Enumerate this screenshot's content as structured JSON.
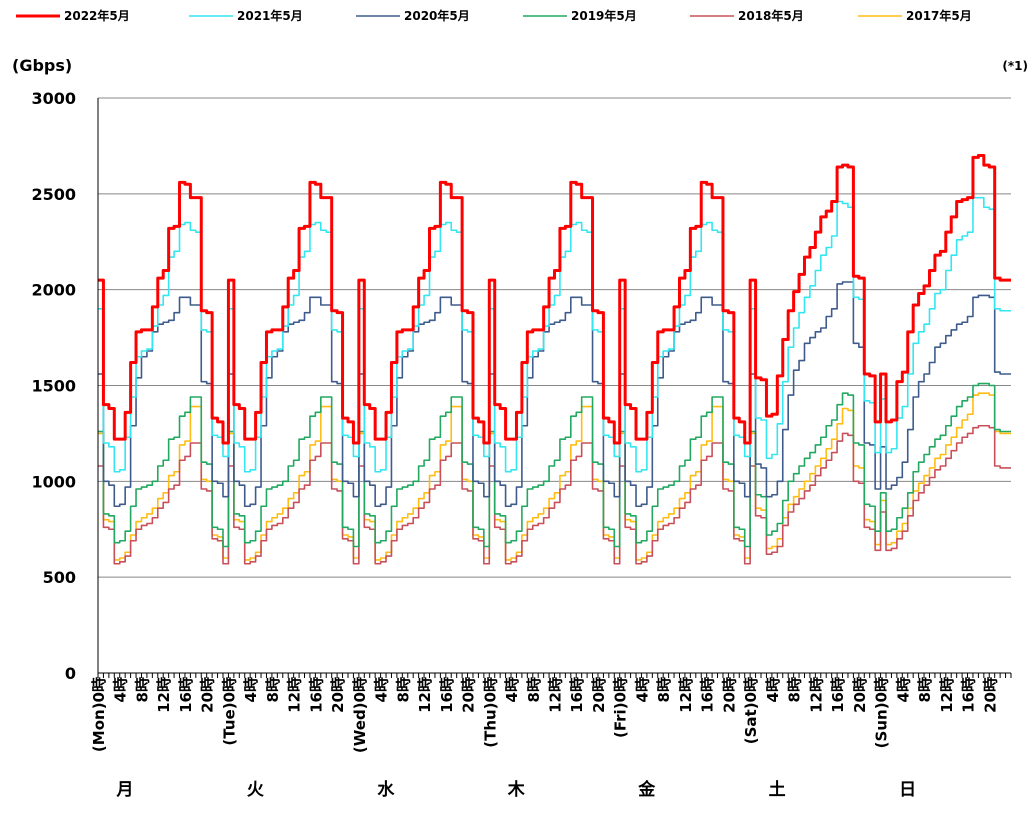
{
  "chart_data": {
    "type": "line",
    "title": "",
    "ylabel": "(Gbps)",
    "note": "(*1)",
    "ylim": [
      0,
      3000
    ],
    "yticks": [
      0,
      500,
      1000,
      1500,
      2000,
      2500,
      3000
    ],
    "grid": true,
    "legend_position": "top",
    "hour_labels": [
      "0時",
      "4時",
      "8時",
      "12時",
      "16時",
      "20時"
    ],
    "days": [
      {
        "en": "(Mon)",
        "ja": "月"
      },
      {
        "en": "(Tue)",
        "ja": "火"
      },
      {
        "en": "(Wed)",
        "ja": "水"
      },
      {
        "en": "(Thu)",
        "ja": "木"
      },
      {
        "en": "(Fri)",
        "ja": "金"
      },
      {
        "en": "(Sat)",
        "ja": "土"
      },
      {
        "en": "(Sun)",
        "ja": "日"
      }
    ],
    "hours_key": [
      0,
      1,
      2,
      3,
      4,
      5,
      6,
      7,
      8,
      9,
      10,
      11,
      12,
      13,
      14,
      15,
      16,
      17,
      18,
      19,
      20,
      21,
      22,
      23
    ],
    "series": [
      {
        "name": "2022年5月",
        "color": "#ff0000",
        "width": 3,
        "weekday": [
          2050,
          1400,
          1380,
          1220,
          1220,
          1360,
          1620,
          1780,
          1790,
          1790,
          1910,
          2060,
          2100,
          2320,
          2330,
          2560,
          2550,
          2480,
          2480,
          1890,
          1880,
          1330,
          1310,
          1200
        ],
        "saturday": [
          2050,
          1540,
          1530,
          1340,
          1350,
          1550,
          1740,
          1890,
          1990,
          2080,
          2170,
          2220,
          2300,
          2380,
          2410,
          2460,
          2640,
          2650,
          2640,
          2070,
          2060,
          1560,
          1550,
          1310
        ],
        "sunday": [
          1560,
          1310,
          1320,
          1520,
          1570,
          1780,
          1920,
          1980,
          2020,
          2100,
          2180,
          2200,
          2300,
          2380,
          2460,
          2470,
          2480,
          2690,
          2700,
          2650,
          2640,
          2060,
          2050,
          2050
        ]
      },
      {
        "name": "2021年5月",
        "color": "#33e6f2",
        "width": 1.6,
        "weekday": [
          1900,
          1200,
          1180,
          1050,
          1060,
          1230,
          1440,
          1650,
          1680,
          1690,
          1810,
          1920,
          1970,
          2170,
          2200,
          2340,
          2350,
          2310,
          2300,
          1790,
          1780,
          1240,
          1230,
          1130
        ],
        "saturday": [
          1900,
          1330,
          1320,
          1120,
          1140,
          1300,
          1520,
          1700,
          1800,
          1880,
          1960,
          2020,
          2100,
          2180,
          2220,
          2280,
          2460,
          2450,
          2430,
          1960,
          1950,
          1420,
          1410,
          1150
        ],
        "sunday": [
          1430,
          1150,
          1170,
          1330,
          1390,
          1560,
          1720,
          1780,
          1820,
          1900,
          1980,
          2000,
          2100,
          2180,
          2260,
          2280,
          2300,
          2480,
          2480,
          2430,
          2420,
          1900,
          1890,
          1890
        ]
      },
      {
        "name": "2020年5月",
        "color": "#3e5b8c",
        "width": 1.6,
        "weekday": [
          1560,
          1000,
          980,
          870,
          880,
          970,
          1290,
          1540,
          1650,
          1680,
          1780,
          1820,
          1830,
          1840,
          1880,
          1960,
          1960,
          1920,
          1920,
          1520,
          1510,
          1000,
          990,
          920
        ],
        "saturday": [
          1560,
          1090,
          1070,
          920,
          930,
          1000,
          1270,
          1450,
          1580,
          1630,
          1720,
          1750,
          1780,
          1800,
          1860,
          1900,
          2030,
          2040,
          2040,
          1720,
          1700,
          1200,
          1190,
          960
        ],
        "sunday": [
          1180,
          960,
          980,
          1020,
          1100,
          1270,
          1440,
          1520,
          1560,
          1620,
          1700,
          1720,
          1760,
          1790,
          1820,
          1830,
          1860,
          1960,
          1970,
          1970,
          1960,
          1570,
          1560,
          1560
        ]
      },
      {
        "name": "2019年5月",
        "color": "#22a860",
        "width": 1.6,
        "weekday": [
          1260,
          830,
          820,
          680,
          690,
          740,
          870,
          960,
          970,
          980,
          1000,
          1080,
          1110,
          1220,
          1230,
          1340,
          1360,
          1440,
          1440,
          1100,
          1090,
          760,
          750,
          660
        ],
        "saturday": [
          1260,
          930,
          920,
          720,
          740,
          780,
          900,
          1000,
          1040,
          1080,
          1120,
          1150,
          1190,
          1230,
          1290,
          1320,
          1400,
          1460,
          1450,
          1200,
          1190,
          880,
          870,
          740
        ],
        "sunday": [
          940,
          740,
          750,
          810,
          860,
          940,
          1050,
          1100,
          1140,
          1180,
          1220,
          1240,
          1290,
          1340,
          1390,
          1420,
          1440,
          1500,
          1510,
          1510,
          1500,
          1270,
          1260,
          1260
        ]
      },
      {
        "name": "2018年5月",
        "color": "#c8505a",
        "width": 1.6,
        "weekday": [
          1080,
          760,
          750,
          570,
          580,
          610,
          690,
          750,
          770,
          780,
          810,
          860,
          890,
          960,
          980,
          1110,
          1130,
          1200,
          1200,
          960,
          950,
          700,
          690,
          570
        ],
        "saturday": [
          1080,
          820,
          810,
          620,
          630,
          660,
          770,
          840,
          880,
          910,
          950,
          980,
          1030,
          1070,
          1110,
          1150,
          1210,
          1250,
          1240,
          1000,
          990,
          760,
          750,
          640
        ],
        "sunday": [
          840,
          640,
          650,
          700,
          740,
          820,
          900,
          940,
          980,
          1020,
          1060,
          1080,
          1120,
          1160,
          1200,
          1230,
          1250,
          1280,
          1290,
          1290,
          1280,
          1080,
          1070,
          1070
        ]
      },
      {
        "name": "2017年5月",
        "color": "#ffbd14",
        "width": 1.6,
        "weekday": [
          1250,
          800,
          790,
          590,
          600,
          630,
          720,
          790,
          810,
          830,
          860,
          910,
          940,
          1030,
          1050,
          1190,
          1210,
          1390,
          1390,
          1010,
          1000,
          720,
          710,
          600
        ],
        "saturday": [
          1250,
          860,
          850,
          650,
          660,
          700,
          810,
          880,
          920,
          960,
          1000,
          1040,
          1080,
          1120,
          1170,
          1220,
          1300,
          1380,
          1370,
          1080,
          1070,
          800,
          790,
          670
        ],
        "sunday": [
          900,
          670,
          680,
          740,
          780,
          860,
          950,
          990,
          1030,
          1070,
          1120,
          1140,
          1190,
          1230,
          1280,
          1320,
          1350,
          1450,
          1460,
          1460,
          1450,
          1260,
          1250,
          1250
        ]
      }
    ]
  }
}
